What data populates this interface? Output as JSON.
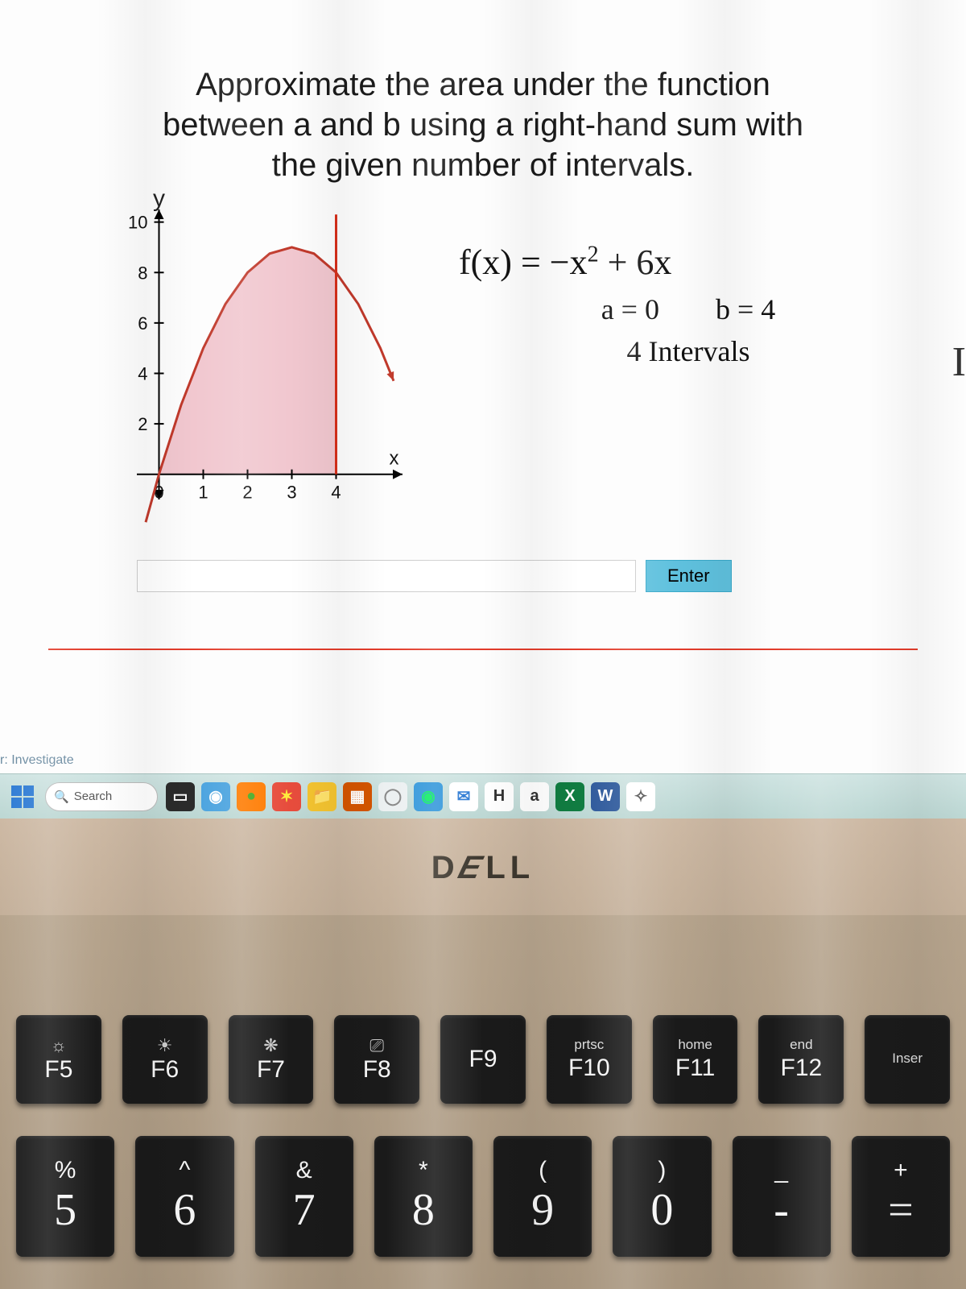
{
  "problem": {
    "title_lines": [
      "Approximate the area under the function",
      "between a and b using a right-hand sum with",
      "the given number of intervals."
    ],
    "y_axis_label": "y",
    "x_axis_label": "x",
    "formula_plain": "f(x) = −x² + 6x",
    "a_label": "a = 0",
    "b_label": "b = 4",
    "intervals_label": "4 Intervals",
    "enter_button": "Enter"
  },
  "chart": {
    "type": "area-under-curve",
    "xlim": [
      -0.5,
      5.5
    ],
    "ylim": [
      -1,
      10.5
    ],
    "xticks": [
      0,
      1,
      2,
      3,
      4
    ],
    "yticks": [
      2,
      4,
      6,
      8,
      10
    ],
    "ytick_label_10": "10",
    "curve_points_x": [
      -0.3,
      0,
      0.5,
      1,
      1.5,
      2,
      2.5,
      3,
      3.5,
      4,
      4.5,
      5,
      5.3
    ],
    "curve_points_y": [
      -1.9,
      0,
      2.75,
      5,
      6.75,
      8,
      8.75,
      9,
      8.75,
      8,
      6.75,
      5,
      3.7
    ],
    "shaded_x_range": [
      0,
      4
    ],
    "curve_color": "#c0392b",
    "vertical_line_color": "#d62f1a",
    "axis_color": "#000000",
    "fill_color": "#f1c7cf",
    "arrow_color": "#333333",
    "tick_fontsize": 22
  },
  "taskbar": {
    "tab_text": "r: Investigate",
    "search_placeholder": "Search",
    "icons": [
      {
        "name": "task-view-icon",
        "bg": "#2b2b2b",
        "glyph": "▭",
        "color": "#fff"
      },
      {
        "name": "camera-icon",
        "bg": "#4aa3df",
        "glyph": "◉",
        "color": "#fff"
      },
      {
        "name": "firefox-icon",
        "bg": "#ff7b00",
        "glyph": "●",
        "color": "#4a2"
      },
      {
        "name": "star-icon",
        "bg": "#e74c3c",
        "glyph": "✶",
        "color": "#ffeb3b"
      },
      {
        "name": "explorer-icon",
        "bg": "#f4c430",
        "glyph": "📁",
        "color": "#333"
      },
      {
        "name": "app-icon",
        "bg": "#d35400",
        "glyph": "▦",
        "color": "#fff"
      },
      {
        "name": "circle-icon",
        "bg": "#ecf0f1",
        "glyph": "◯",
        "color": "#888"
      },
      {
        "name": "edge-icon",
        "bg": "#3498db",
        "glyph": "◉",
        "color": "#1e6"
      },
      {
        "name": "mail-icon",
        "bg": "#ffffff",
        "glyph": "✉",
        "color": "#2e7bd4"
      },
      {
        "name": "h-icon",
        "bg": "#ffffff",
        "glyph": "H",
        "color": "#333"
      },
      {
        "name": "a-icon",
        "bg": "#ffffff",
        "glyph": "a",
        "color": "#333"
      },
      {
        "name": "x-icon",
        "bg": "#107c41",
        "glyph": "X",
        "color": "#fff"
      },
      {
        "name": "w-icon",
        "bg": "#2b579a",
        "glyph": "W",
        "color": "#fff"
      },
      {
        "name": "snip-icon",
        "bg": "#ffffff",
        "glyph": "✧",
        "color": "#555"
      }
    ]
  },
  "brand": "DELL",
  "keyboard": {
    "fn_keys": [
      {
        "top": "",
        "main": "F5",
        "icon": "☼"
      },
      {
        "top": "",
        "main": "F6",
        "icon": "☀"
      },
      {
        "top": "",
        "main": "F7",
        "icon": "❋"
      },
      {
        "top": "",
        "main": "F8",
        "icon": "⎚"
      },
      {
        "top": "",
        "main": "F9",
        "icon": ""
      },
      {
        "top": "prtsc",
        "main": "F10",
        "icon": ""
      },
      {
        "top": "home",
        "main": "F11",
        "icon": ""
      },
      {
        "top": "end",
        "main": "F12",
        "icon": ""
      },
      {
        "top": "Inser",
        "main": "",
        "icon": ""
      }
    ],
    "num_keys": [
      {
        "upper": "%",
        "lower": "5"
      },
      {
        "upper": "^",
        "lower": "6"
      },
      {
        "upper": "&",
        "lower": "7"
      },
      {
        "upper": "*",
        "lower": "8"
      },
      {
        "upper": "(",
        "lower": "9"
      },
      {
        "upper": ")",
        "lower": "0"
      },
      {
        "upper": "_",
        "lower": "-"
      },
      {
        "upper": "+",
        "lower": "="
      }
    ]
  }
}
